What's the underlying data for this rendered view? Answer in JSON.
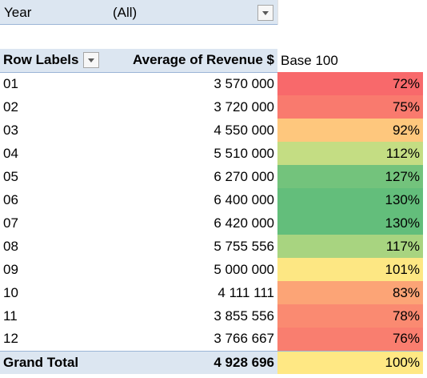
{
  "filter": {
    "label": "Year",
    "value": "(All)"
  },
  "pivot": {
    "headers": {
      "row_labels": "Row Labels",
      "avg_revenue": "Average of Revenue $",
      "base": "Base 100"
    },
    "rows": [
      {
        "label": "01",
        "avg": "3 570 000",
        "base": "72%",
        "color": "#f8696b"
      },
      {
        "label": "02",
        "avg": "3 720 000",
        "base": "75%",
        "color": "#f97a6e"
      },
      {
        "label": "03",
        "avg": "4 550 000",
        "base": "92%",
        "color": "#fec77d"
      },
      {
        "label": "04",
        "avg": "5 510 000",
        "base": "112%",
        "color": "#c4dd83"
      },
      {
        "label": "05",
        "avg": "6 270 000",
        "base": "127%",
        "color": "#73c37c"
      },
      {
        "label": "06",
        "avg": "6 400 000",
        "base": "130%",
        "color": "#63be7b"
      },
      {
        "label": "07",
        "avg": "6 420 000",
        "base": "130%",
        "color": "#63be7b"
      },
      {
        "label": "08",
        "avg": "5 755 556",
        "base": "117%",
        "color": "#a8d480"
      },
      {
        "label": "09",
        "avg": "5 000 000",
        "base": "101%",
        "color": "#fde783"
      },
      {
        "label": "10",
        "avg": "4 111 111",
        "base": "83%",
        "color": "#fca476"
      },
      {
        "label": "11",
        "avg": "3 855 556",
        "base": "78%",
        "color": "#fa8a71"
      },
      {
        "label": "12",
        "avg": "3 766 667",
        "base": "76%",
        "color": "#f97e6f"
      }
    ],
    "total": {
      "label": "Grand Total",
      "avg": "4 928 696",
      "base": "100%",
      "color": "#ffe884"
    }
  }
}
